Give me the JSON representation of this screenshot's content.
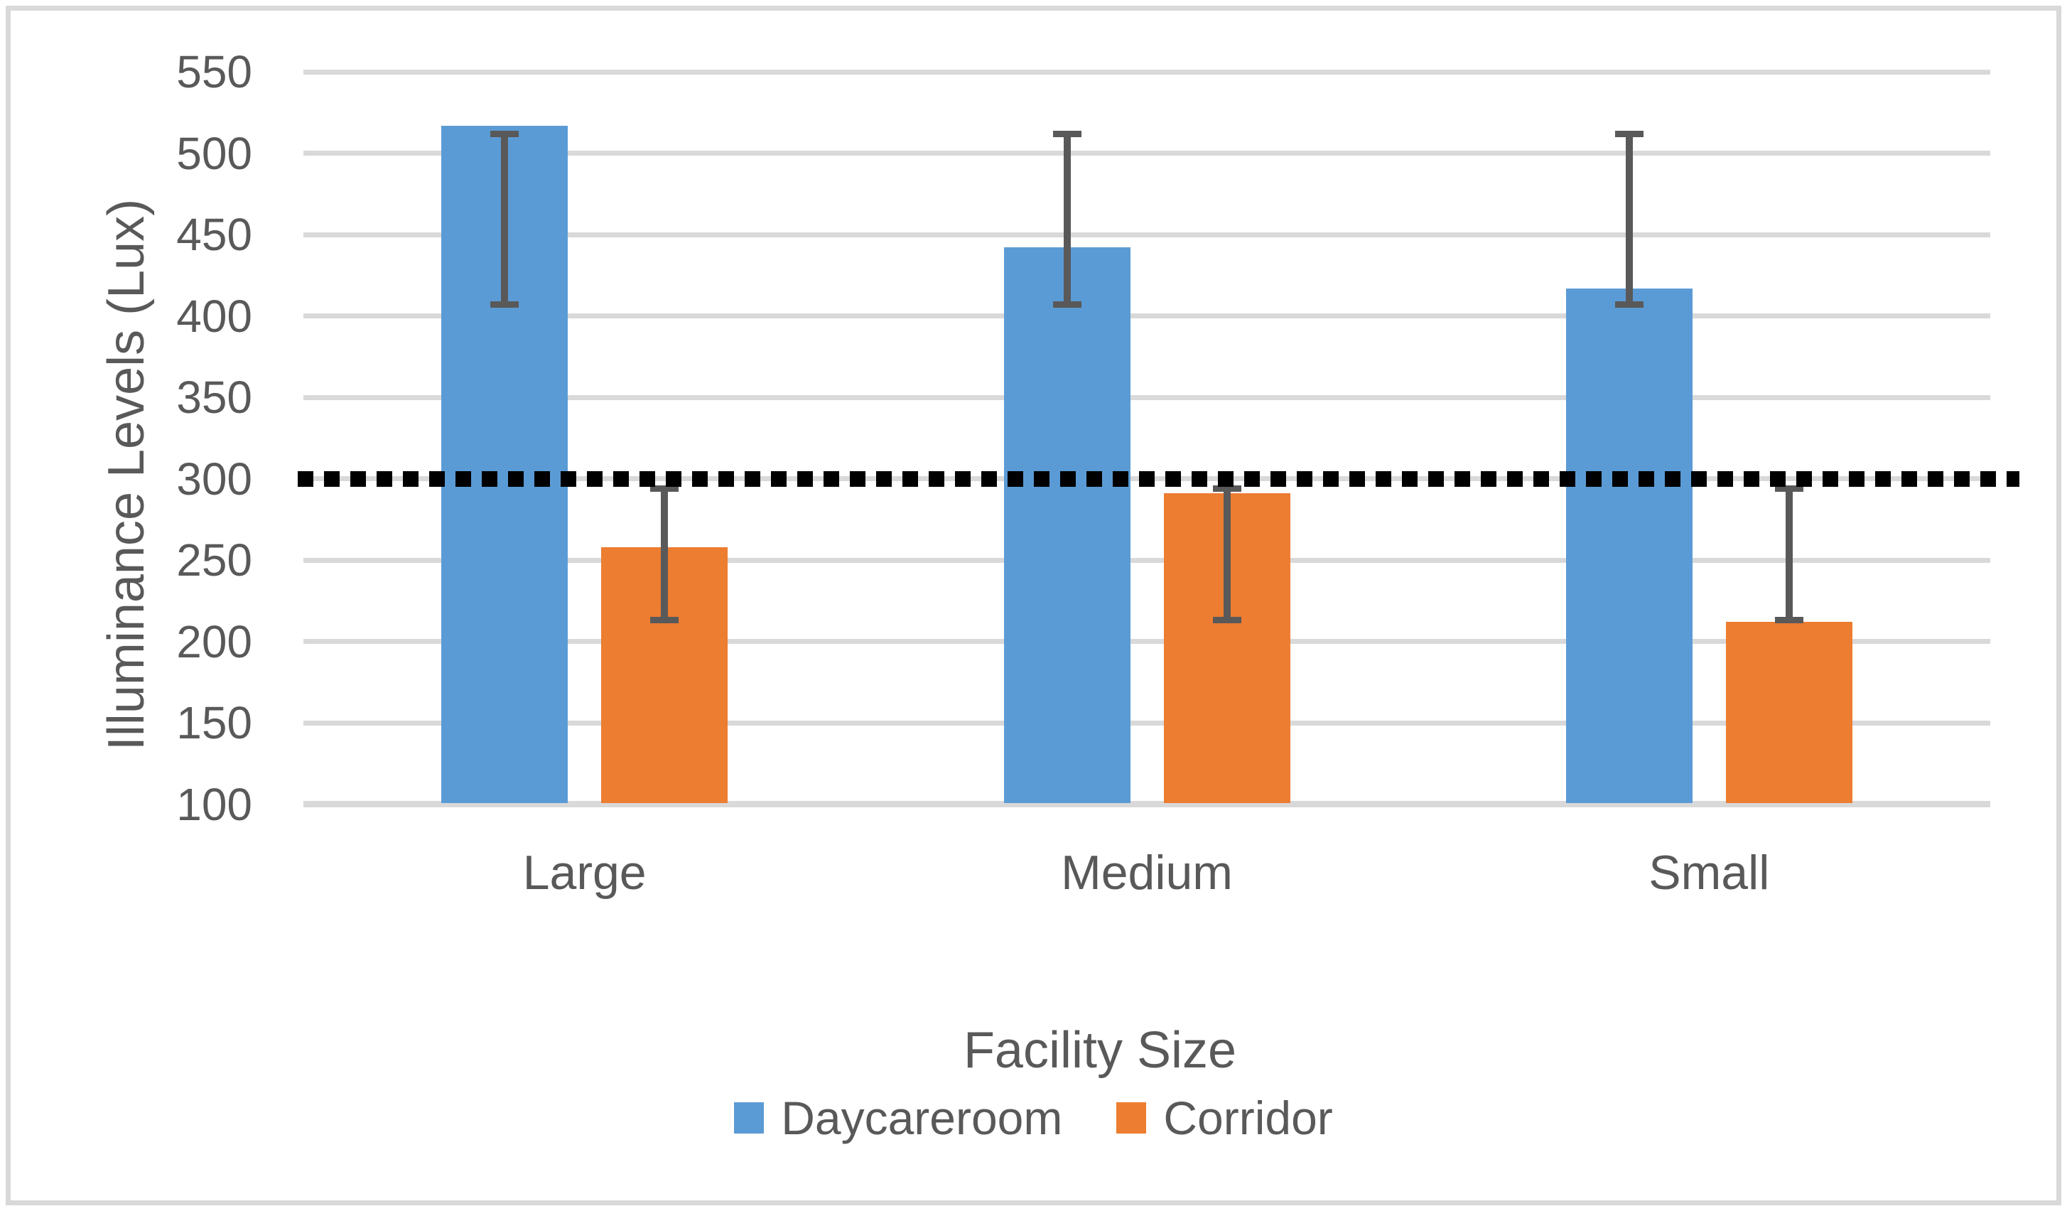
{
  "chart_data": {
    "type": "bar",
    "title": "",
    "categories": [
      "Large",
      "Medium",
      "Small"
    ],
    "series": [
      {
        "name": "Daycareroom",
        "color": "#5B9BD5",
        "values": [
          517,
          442,
          417
        ],
        "error_low": [
          407,
          407,
          407
        ],
        "error_high": [
          512,
          512,
          512
        ]
      },
      {
        "name": "Corridor",
        "color": "#ED7D31",
        "values": [
          258,
          291,
          212
        ],
        "error_low": [
          213,
          213,
          213
        ],
        "error_high": [
          294,
          294,
          294
        ]
      }
    ],
    "xlabel": "Facility Size",
    "ylabel": "Illuminance Levels (Lux)",
    "ylim": [
      100,
      550
    ],
    "yticks": [
      100,
      150,
      200,
      250,
      300,
      350,
      400,
      450,
      500,
      550
    ],
    "grid": "horizontal",
    "legend_position": "bottom",
    "reference_line": {
      "value": 300,
      "style": "dotted",
      "color": "#000000"
    },
    "error_bar_color": "#595959",
    "gridline_color": "#D9D9D9",
    "axis_text_color": "#595959"
  }
}
